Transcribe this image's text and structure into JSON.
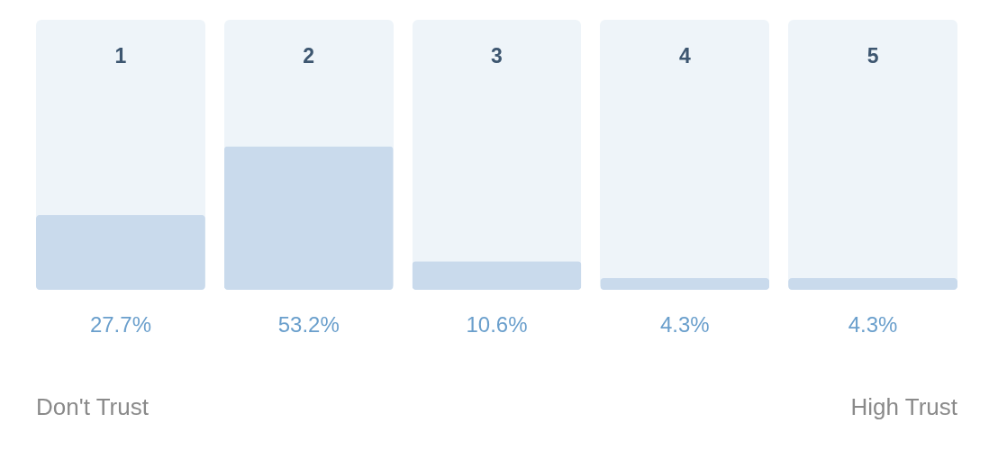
{
  "chart_data": {
    "type": "bar",
    "categories": [
      "1",
      "2",
      "3",
      "4",
      "5"
    ],
    "values": [
      27.7,
      53.2,
      10.6,
      4.3,
      4.3
    ],
    "color": "#c9daec",
    "value_labels": [
      "27.7%",
      "53.2%",
      "10.6%",
      "4.3%",
      "4.3%"
    ],
    "ylim": [
      0,
      100
    ],
    "tick_labels": "x",
    "annotations": [
      "Don't Trust",
      "High Trust"
    ]
  }
}
